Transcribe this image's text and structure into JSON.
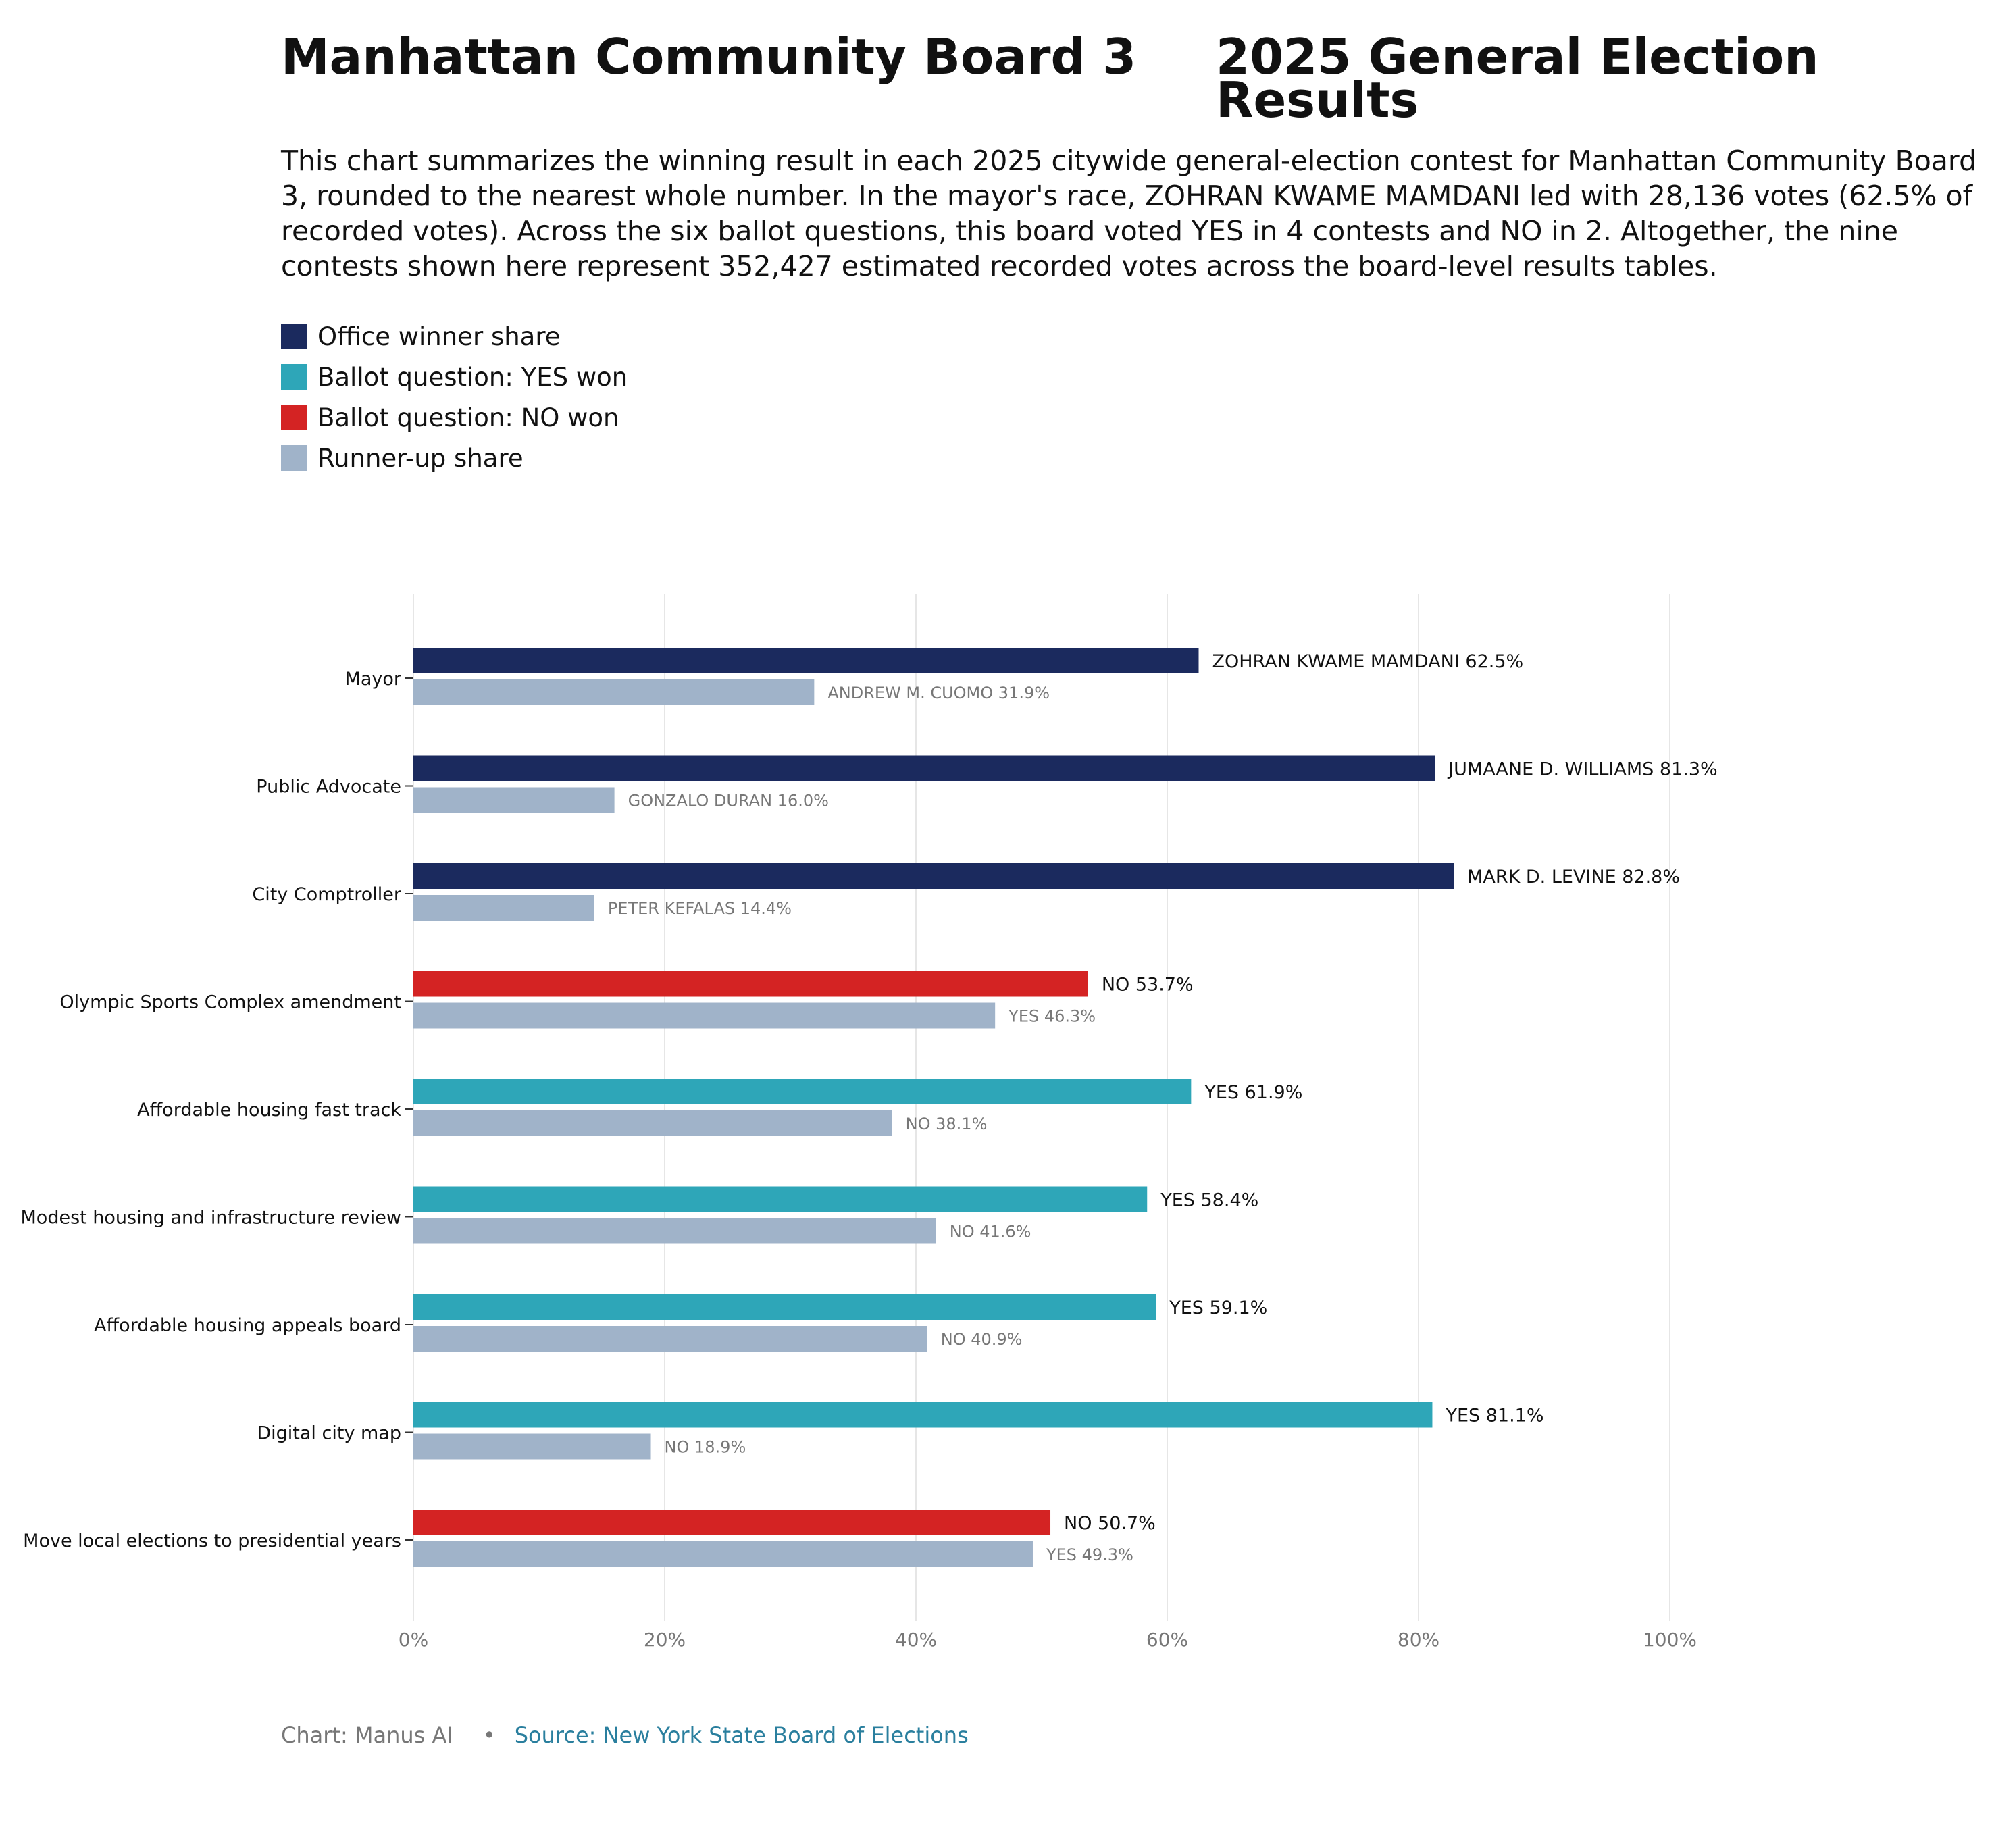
{
  "title_left": "Manhattan Community Board 3",
  "title_right": "2025 General Election Results",
  "subtitle": "This chart summarizes the winning result in each 2025 citywide general-election contest for Manhattan Community Board 3, rounded to the nearest whole number. In the mayor's race, ZOHRAN KWAME MAMDANI led with 28,136 votes (62.5% of recorded votes). Across the six ballot questions, this board voted YES in 4 contests and NO in 2. Altogether, the nine contests shown here represent 352,427 estimated recorded votes across the board-level results tables.",
  "legend": [
    {
      "label": "Office winner share",
      "color": "#1b2a5e"
    },
    {
      "label": "Ballot question: YES won",
      "color": "#2ea6b8"
    },
    {
      "label": "Ballot question: NO won",
      "color": "#d42323"
    },
    {
      "label": "Runner-up share",
      "color": "#a0b3c9"
    }
  ],
  "footer": {
    "credit": "Chart: Manus AI",
    "separator": "•",
    "source": "Source: New York State Board of Elections"
  },
  "chart_data": {
    "type": "bar",
    "orientation": "horizontal",
    "x_ticks": [
      "0%",
      "20%",
      "40%",
      "60%",
      "80%",
      "100%"
    ],
    "xlim": [
      0,
      100
    ],
    "grid": true,
    "categories": [
      "Mayor",
      "Public Advocate",
      "City Comptroller",
      "Olympic Sports Complex amendment",
      "Affordable housing fast track",
      "Modest housing and infrastructure review",
      "Affordable housing appeals board",
      "Digital city map",
      "Move local elections to presidential years"
    ],
    "winner": [
      {
        "value": 62.5,
        "label": "ZOHRAN KWAME MAMDANI 62.5%",
        "kind": "office"
      },
      {
        "value": 81.3,
        "label": "JUMAANE D. WILLIAMS 81.3%",
        "kind": "office"
      },
      {
        "value": 82.8,
        "label": "MARK D. LEVINE 82.8%",
        "kind": "office"
      },
      {
        "value": 53.7,
        "label": "NO 53.7%",
        "kind": "no"
      },
      {
        "value": 61.9,
        "label": "YES 61.9%",
        "kind": "yes"
      },
      {
        "value": 58.4,
        "label": "YES 58.4%",
        "kind": "yes"
      },
      {
        "value": 59.1,
        "label": "YES 59.1%",
        "kind": "yes"
      },
      {
        "value": 81.1,
        "label": "YES 81.1%",
        "kind": "yes"
      },
      {
        "value": 50.7,
        "label": "NO 50.7%",
        "kind": "no"
      }
    ],
    "runner_up": [
      {
        "value": 31.9,
        "label": "ANDREW M. CUOMO 31.9%"
      },
      {
        "value": 16.0,
        "label": "GONZALO DURAN 16.0%"
      },
      {
        "value": 14.4,
        "label": "PETER KEFALAS 14.4%"
      },
      {
        "value": 46.3,
        "label": "YES 46.3%"
      },
      {
        "value": 38.1,
        "label": "NO 38.1%"
      },
      {
        "value": 41.6,
        "label": "NO 41.6%"
      },
      {
        "value": 40.9,
        "label": "NO 40.9%"
      },
      {
        "value": 18.9,
        "label": "NO 18.9%"
      },
      {
        "value": 49.3,
        "label": "YES 49.3%"
      }
    ],
    "colors": {
      "office": "#1b2a5e",
      "yes": "#2ea6b8",
      "no": "#d42323",
      "runner_up": "#a0b3c9",
      "grid": "#e6e6e6",
      "tick_text": "#777777",
      "runner_label": "#777777"
    }
  }
}
